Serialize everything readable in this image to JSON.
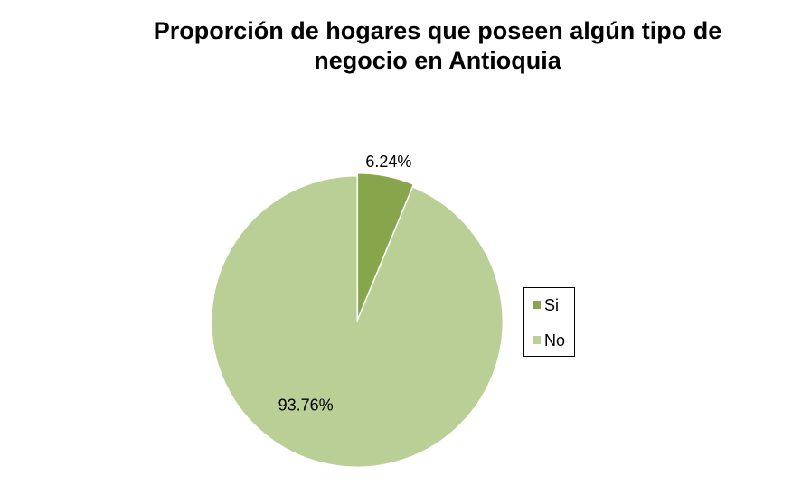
{
  "chart_data": {
    "type": "pie",
    "title": "Proporción de hogares que poseen algún tipo de negocio en Antioquia",
    "categories": [
      "Si",
      "No"
    ],
    "values": [
      6.24,
      93.76
    ],
    "value_labels": [
      "6.24%",
      "93.76%"
    ],
    "colors": [
      "#87a64b",
      "#b9cf96"
    ],
    "legend": "right"
  }
}
